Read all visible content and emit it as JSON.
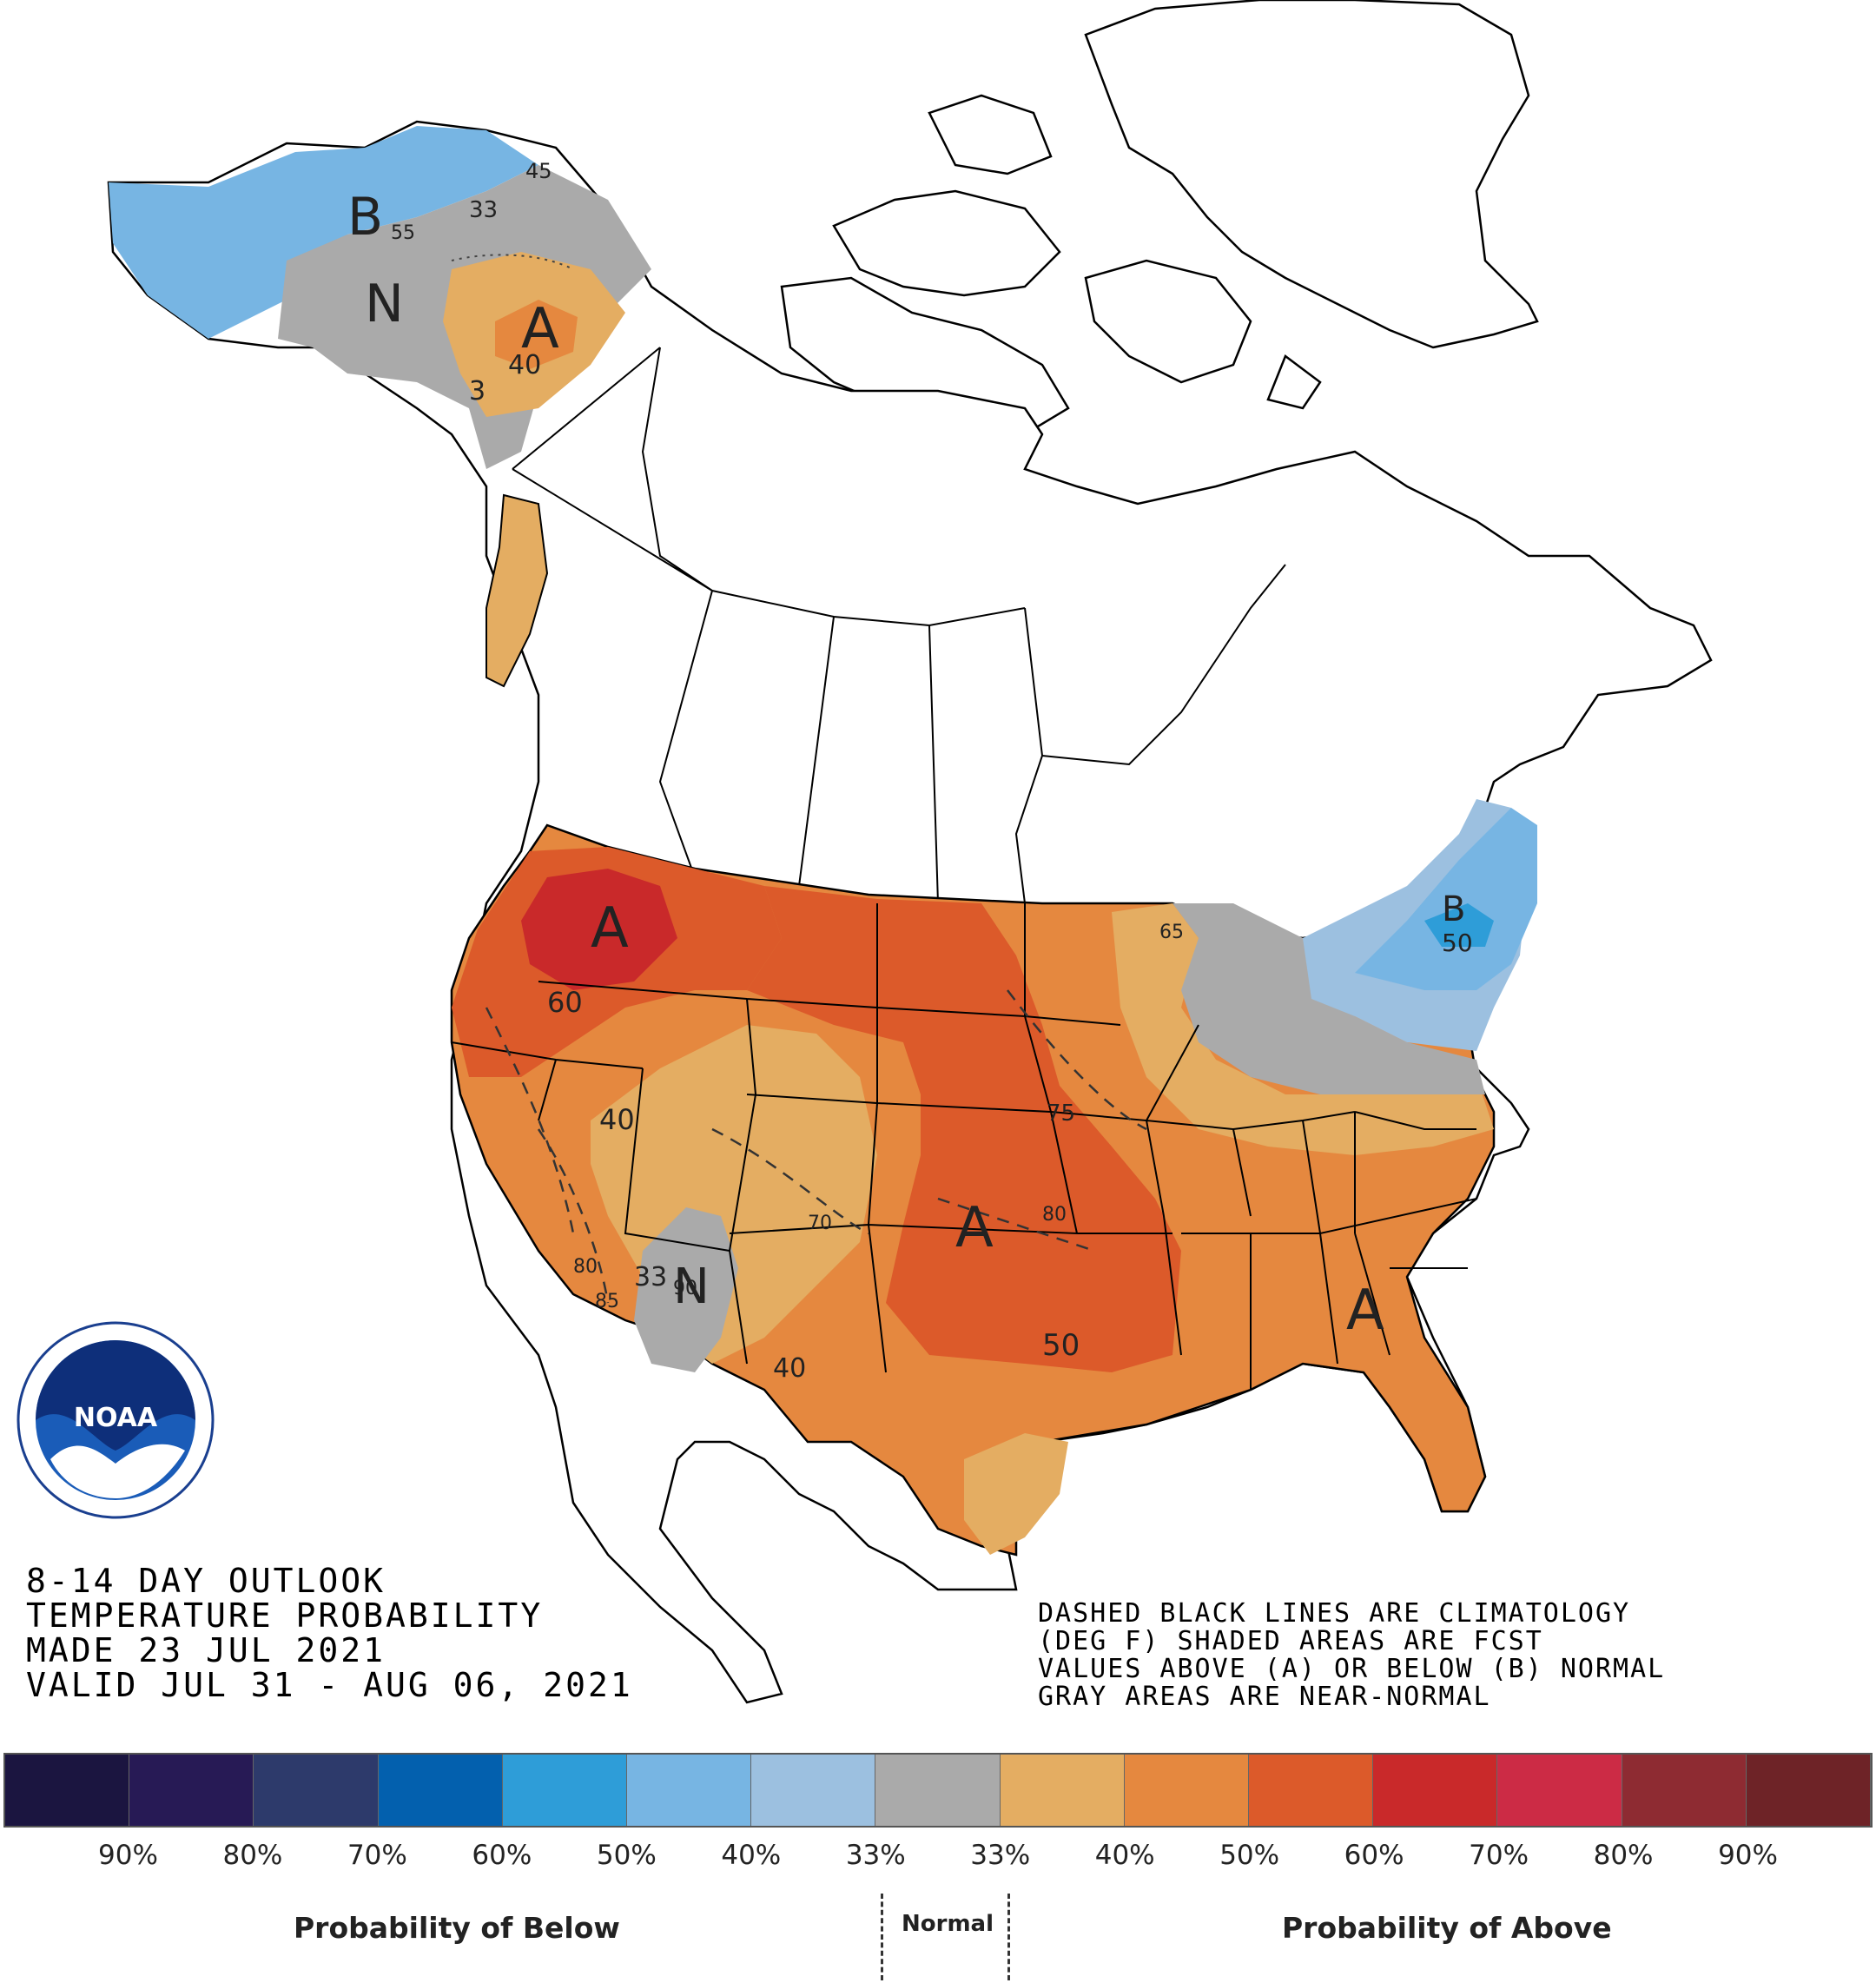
{
  "title": {
    "line1": "8-14 DAY OUTLOOK",
    "line2": "TEMPERATURE PROBABILITY",
    "line3": "MADE  23 JUL 2021",
    "line4": "VALID  JUL 31 - AUG 06, 2021"
  },
  "notes": {
    "line1": "DASHED BLACK LINES ARE CLIMATOLOGY",
    "line2": "(DEG F) SHADED AREAS ARE FCST",
    "line3": "VALUES ABOVE (A) OR BELOW (B) NORMAL",
    "line4": "GRAY AREAS ARE NEAR-NORMAL"
  },
  "logo": {
    "name": "NOAA"
  },
  "map_labels": {
    "alaska_b": "B",
    "alaska_n": "N",
    "alaska_a": "A",
    "alaska_40": "40",
    "alaska_33": "33",
    "alaska_33b": "3",
    "alaska_45": "45",
    "alaska_55": "55",
    "nw_a": "A",
    "nw_60": "60",
    "w_40": "40",
    "sw_n": "N",
    "sw_33": "33",
    "sw_80": "80",
    "sw_85": "85",
    "sw_90": "90",
    "s_40": "40",
    "c_a": "A",
    "c_75": "75",
    "c_80": "80",
    "c_70": "70",
    "c_50": "50",
    "se_a": "A",
    "ne_b": "B",
    "ne_50": "50",
    "gl_65": "65"
  },
  "legend": {
    "colors": [
      "#1b1540",
      "#271a55",
      "#2d3a6b",
      "#0360ae",
      "#2e9dd8",
      "#77b5e3",
      "#9cc0e0",
      "#aaaaaa",
      "#e4ad62",
      "#e5883f",
      "#dc5a2a",
      "#c9292a",
      "#cc2b45",
      "#8e2b32",
      "#6e2327"
    ],
    "ticks": [
      "90%",
      "80%",
      "70%",
      "60%",
      "50%",
      "40%",
      "33%",
      "33%",
      "40%",
      "50%",
      "60%",
      "70%",
      "80%",
      "90%"
    ],
    "below_label": "Probability of Below",
    "normal_label": "Normal",
    "above_label": "Probability of Above"
  }
}
